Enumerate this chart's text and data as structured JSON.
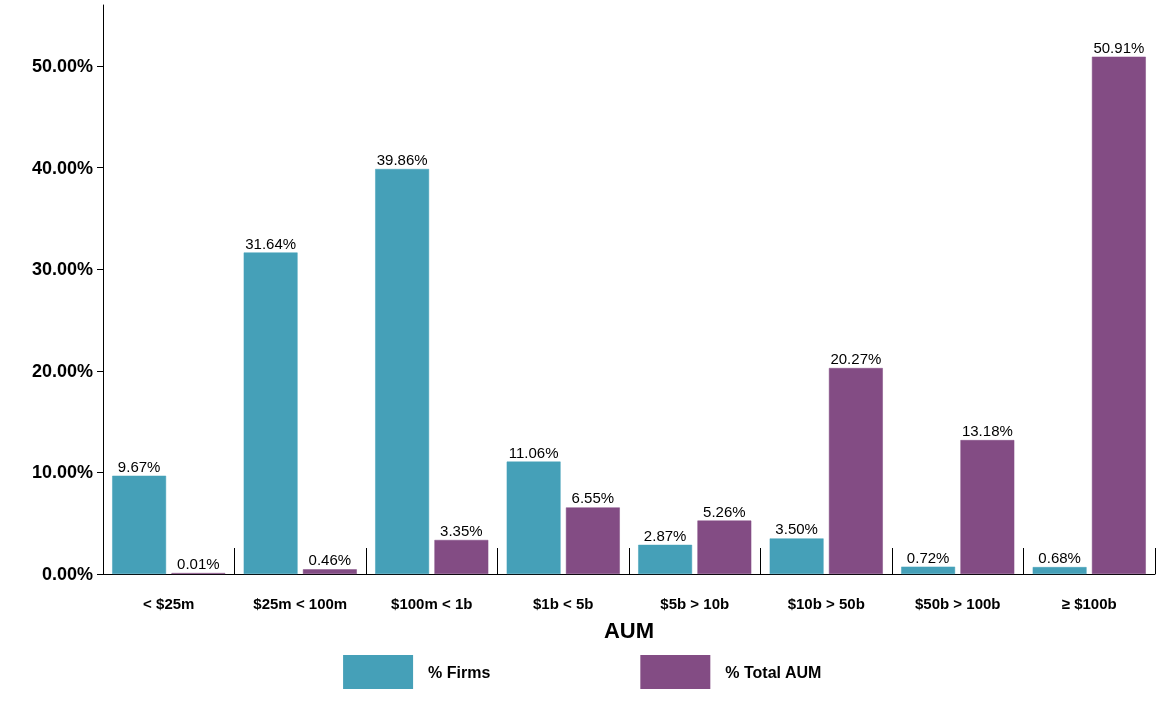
{
  "chart_data": {
    "type": "bar",
    "xlabel": "AUM",
    "categories": [
      "< $25m",
      "$25m < 100m",
      "$100m < 1b",
      "$1b < 5b",
      "$5b > 10b",
      "$10b > 50b",
      "$50b > 100b",
      "≥ $100b"
    ],
    "series": [
      {
        "name": "% Firms",
        "color": "#45a0b8",
        "values": [
          9.67,
          31.64,
          39.86,
          11.06,
          2.87,
          3.5,
          0.72,
          0.68
        ],
        "value_labels": [
          "9.67%",
          "31.64%",
          "39.86%",
          "11.06%",
          "2.87%",
          "3.50%",
          "0.72%",
          "0.68%"
        ]
      },
      {
        "name": "% Total AUM",
        "color": "#834c84",
        "values": [
          0.01,
          0.46,
          3.35,
          6.55,
          5.26,
          20.27,
          13.18,
          50.91
        ],
        "value_labels": [
          "0.01%",
          "0.46%",
          "3.35%",
          "6.55%",
          "5.26%",
          "20.27%",
          "13.18%",
          "50.91%"
        ]
      }
    ],
    "ylim": [
      0,
      56
    ],
    "yticks": [
      {
        "value": 0,
        "label": "0.00%"
      },
      {
        "value": 10,
        "label": "10.00%"
      },
      {
        "value": 20,
        "label": "20.00%"
      },
      {
        "value": 30,
        "label": "30.00%"
      },
      {
        "value": 40,
        "label": "40.00%"
      },
      {
        "value": 50,
        "label": "50.00%"
      }
    ],
    "grid": false,
    "legend": "bottom"
  }
}
